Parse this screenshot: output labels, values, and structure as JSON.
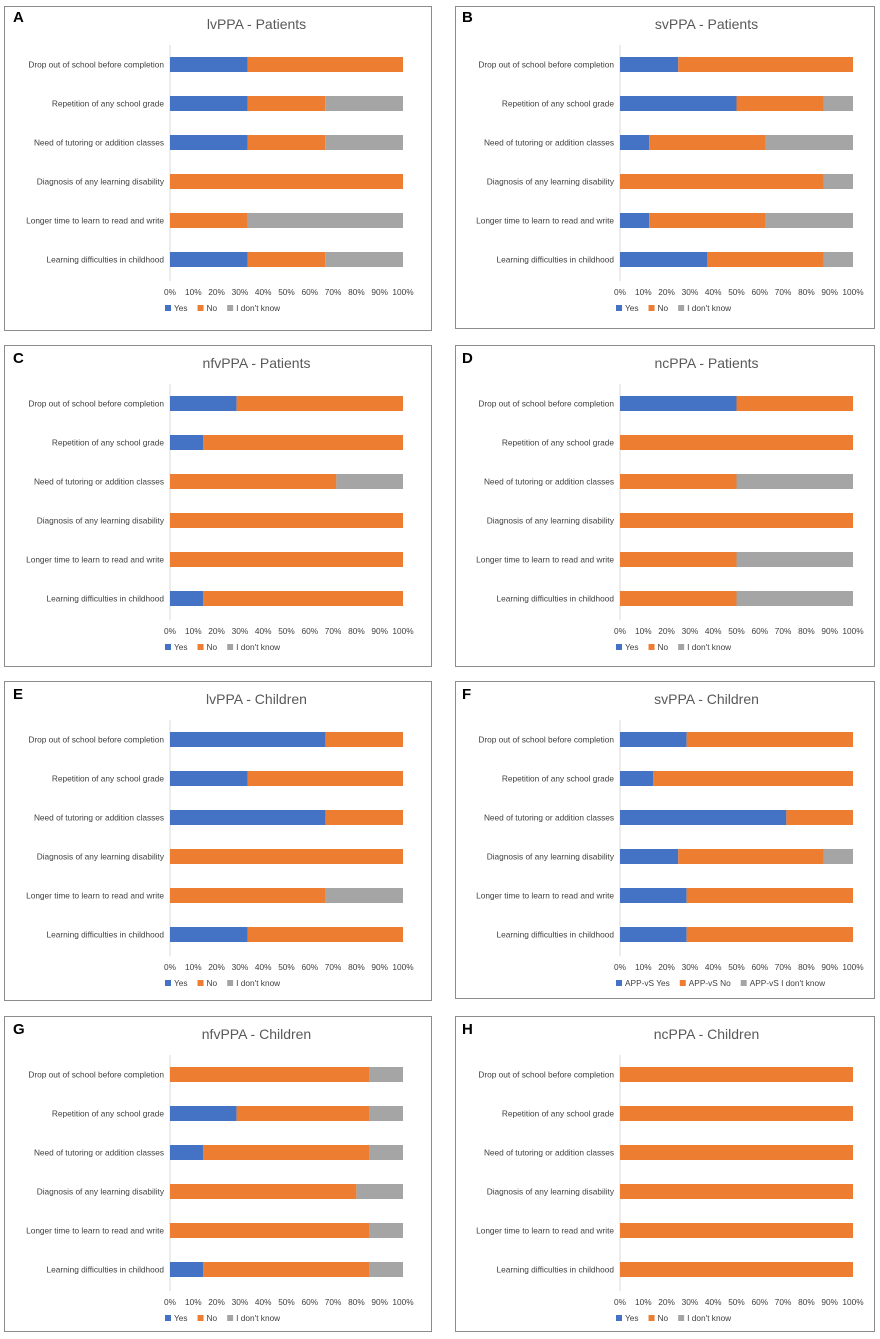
{
  "colors": {
    "yes": "#4472C4",
    "no": "#ED7D31",
    "unknown": "#A5A5A5",
    "axis": "#D9D9D9",
    "text": "#404040"
  },
  "chart_data": [
    {
      "panel": "A",
      "type": "bar",
      "orientation": "horizontal",
      "stacked": "percent",
      "title": "lvPPA - Patients",
      "categories": [
        "Drop out of school before completion",
        "Repetition of any school grade",
        "Need of tutoring or addition classes",
        "Diagnosis of any learning disability",
        "Longer time to learn to read and write",
        "Learning difficulties in childhood"
      ],
      "series": [
        {
          "name": "Yes",
          "values": [
            33.3,
            33.3,
            33.3,
            0,
            0,
            33.3
          ]
        },
        {
          "name": "No",
          "values": [
            66.7,
            33.3,
            33.3,
            100,
            33.3,
            33.3
          ]
        },
        {
          "name": "I don't know",
          "values": [
            0,
            33.4,
            33.4,
            0,
            66.7,
            33.4
          ]
        }
      ],
      "xlim": [
        0,
        100
      ],
      "x_ticks": [
        "0%",
        "10%",
        "20%",
        "30%",
        "40%",
        "50%",
        "60%",
        "70%",
        "80%",
        "90%",
        "100%"
      ],
      "legend": [
        "Yes",
        "No",
        "I don't know"
      ],
      "legend_position": "bottom-left"
    },
    {
      "panel": "B",
      "type": "bar",
      "orientation": "horizontal",
      "stacked": "percent",
      "title": "svPPA - Patients",
      "categories": [
        "Drop out of school before completion",
        "Repetition of any school grade",
        "Need of tutoring or addition classes",
        "Diagnosis of any learning disability",
        "Longer time to learn to read and write",
        "Learning difficulties in childhood"
      ],
      "series": [
        {
          "name": "Yes",
          "values": [
            25,
            50,
            12.5,
            0,
            12.5,
            37.5
          ]
        },
        {
          "name": "No",
          "values": [
            75,
            37.5,
            50,
            87.5,
            50,
            50
          ]
        },
        {
          "name": "I don't know",
          "values": [
            0,
            12.5,
            37.5,
            12.5,
            37.5,
            12.5
          ]
        }
      ],
      "xlim": [
        0,
        100
      ],
      "x_ticks": [
        "0%",
        "10%",
        "20%",
        "30%",
        "40%",
        "50%",
        "60%",
        "70%",
        "80%",
        "90%",
        "100%"
      ],
      "legend": [
        "Yes",
        "No",
        "I don't know"
      ],
      "legend_position": "bottom-left"
    },
    {
      "panel": "C",
      "type": "bar",
      "orientation": "horizontal",
      "stacked": "percent",
      "title": "nfvPPA - Patients",
      "categories": [
        "Drop out of school before completion",
        "Repetition of any school grade",
        "Need of tutoring or addition classes",
        "Diagnosis of any learning disability",
        "Longer time to learn to read and write",
        "Learning difficulties in childhood"
      ],
      "series": [
        {
          "name": "Yes",
          "values": [
            28.6,
            14.3,
            0,
            0,
            0,
            14.3
          ]
        },
        {
          "name": "No",
          "values": [
            71.4,
            85.7,
            71.4,
            100,
            100,
            85.7
          ]
        },
        {
          "name": "I don't know",
          "values": [
            0,
            0,
            28.6,
            0,
            0,
            0
          ]
        }
      ],
      "xlim": [
        0,
        100
      ],
      "x_ticks": [
        "0%",
        "10%",
        "20%",
        "30%",
        "40%",
        "50%",
        "60%",
        "70%",
        "80%",
        "90%",
        "100%"
      ],
      "legend": [
        "Yes",
        "No",
        "I don't know"
      ],
      "legend_position": "bottom-left"
    },
    {
      "panel": "D",
      "type": "bar",
      "orientation": "horizontal",
      "stacked": "percent",
      "title": "ncPPA - Patients",
      "categories": [
        "Drop out of school before completion",
        "Repetition of any school grade",
        "Need of tutoring or addition classes",
        "Diagnosis of any learning disability",
        "Longer time to learn to read and write",
        "Learning difficulties in childhood"
      ],
      "series": [
        {
          "name": "Yes",
          "values": [
            50,
            0,
            0,
            0,
            0,
            0
          ]
        },
        {
          "name": "No",
          "values": [
            50,
            100,
            50,
            100,
            50,
            50
          ]
        },
        {
          "name": "I don't know",
          "values": [
            0,
            0,
            50,
            0,
            50,
            50
          ]
        }
      ],
      "xlim": [
        0,
        100
      ],
      "x_ticks": [
        "0%",
        "10%",
        "20%",
        "30%",
        "40%",
        "50%",
        "60%",
        "70%",
        "80%",
        "90%",
        "100%"
      ],
      "legend": [
        "Yes",
        "No",
        "I don't know"
      ],
      "legend_position": "bottom-left"
    },
    {
      "panel": "E",
      "type": "bar",
      "orientation": "horizontal",
      "stacked": "percent",
      "title": "lvPPA - Children",
      "categories": [
        "Drop out of school before completion",
        "Repetition of any school grade",
        "Need of tutoring or addition classes",
        "Diagnosis of any learning disability",
        "Longer time to learn to read and write",
        "Learning difficulties in childhood"
      ],
      "series": [
        {
          "name": "Yes",
          "values": [
            66.7,
            33.3,
            66.7,
            0,
            0,
            33.3
          ]
        },
        {
          "name": "No",
          "values": [
            33.3,
            66.7,
            33.3,
            100,
            66.7,
            66.7
          ]
        },
        {
          "name": "I don't know",
          "values": [
            0,
            0,
            0,
            0,
            33.3,
            0
          ]
        }
      ],
      "xlim": [
        0,
        100
      ],
      "x_ticks": [
        "0%",
        "10%",
        "20%",
        "30%",
        "40%",
        "50%",
        "60%",
        "70%",
        "80%",
        "90%",
        "100%"
      ],
      "legend": [
        "Yes",
        "No",
        "I don't know"
      ],
      "legend_position": "bottom-left"
    },
    {
      "panel": "F",
      "type": "bar",
      "orientation": "horizontal",
      "stacked": "percent",
      "title": "svPPA - Children",
      "categories": [
        "Drop out of school before completion",
        "Repetition of any school grade",
        "Need of tutoring or addition classes",
        "Diagnosis of any learning disability",
        "Longer time to learn to read and write",
        "Learning difficulties in childhood"
      ],
      "series": [
        {
          "name": "APP-vS Yes",
          "values": [
            28.6,
            14.3,
            71.4,
            25,
            28.6,
            28.6
          ]
        },
        {
          "name": "APP-vS No",
          "values": [
            71.4,
            85.7,
            28.6,
            62.5,
            71.4,
            71.4
          ]
        },
        {
          "name": "APP-vS I don't know",
          "values": [
            0,
            0,
            0,
            12.5,
            0,
            0
          ]
        }
      ],
      "xlim": [
        0,
        100
      ],
      "x_ticks": [
        "0%",
        "10%",
        "20%",
        "30%",
        "40%",
        "50%",
        "60%",
        "70%",
        "80%",
        "90%",
        "100%"
      ],
      "legend": [
        "APP-vS Yes",
        "APP-vS No",
        "APP-vS I don't know"
      ],
      "legend_position": "bottom-left"
    },
    {
      "panel": "G",
      "type": "bar",
      "orientation": "horizontal",
      "stacked": "percent",
      "title": "nfvPPA - Children",
      "categories": [
        "Drop out of school before completion",
        "Repetition of any school grade",
        "Need of tutoring or addition classes",
        "Diagnosis of any learning disability",
        "Longer time to learn to read and write",
        "Learning difficulties in childhood"
      ],
      "series": [
        {
          "name": "Yes",
          "values": [
            0,
            28.6,
            14.3,
            0,
            0,
            14.3
          ]
        },
        {
          "name": "No",
          "values": [
            85.7,
            57.1,
            71.4,
            80,
            85.7,
            71.4
          ]
        },
        {
          "name": "I don't know",
          "values": [
            14.3,
            14.3,
            14.3,
            20,
            14.3,
            14.3
          ]
        }
      ],
      "xlim": [
        0,
        100
      ],
      "x_ticks": [
        "0%",
        "10%",
        "20%",
        "30%",
        "40%",
        "50%",
        "60%",
        "70%",
        "80%",
        "90%",
        "100%"
      ],
      "legend": [
        "Yes",
        "No",
        "I don't know"
      ],
      "legend_position": "bottom-left"
    },
    {
      "panel": "H",
      "type": "bar",
      "orientation": "horizontal",
      "stacked": "percent",
      "title": "ncPPA - Children",
      "categories": [
        "Drop out of school before completion",
        "Repetition of any school grade",
        "Need of tutoring or addition classes",
        "Diagnosis of any learning disability",
        "Longer time to learn to read and write",
        "Learning difficulties in childhood"
      ],
      "series": [
        {
          "name": "Yes",
          "values": [
            0,
            0,
            0,
            0,
            0,
            0
          ]
        },
        {
          "name": "No",
          "values": [
            100,
            100,
            100,
            100,
            100,
            100
          ]
        },
        {
          "name": "I don't know",
          "values": [
            0,
            0,
            0,
            0,
            0,
            0
          ]
        }
      ],
      "xlim": [
        0,
        100
      ],
      "x_ticks": [
        "0%",
        "10%",
        "20%",
        "30%",
        "40%",
        "50%",
        "60%",
        "70%",
        "80%",
        "90%",
        "100%"
      ],
      "legend": [
        "Yes",
        "No",
        "I don't know"
      ],
      "legend_position": "bottom-left"
    }
  ]
}
